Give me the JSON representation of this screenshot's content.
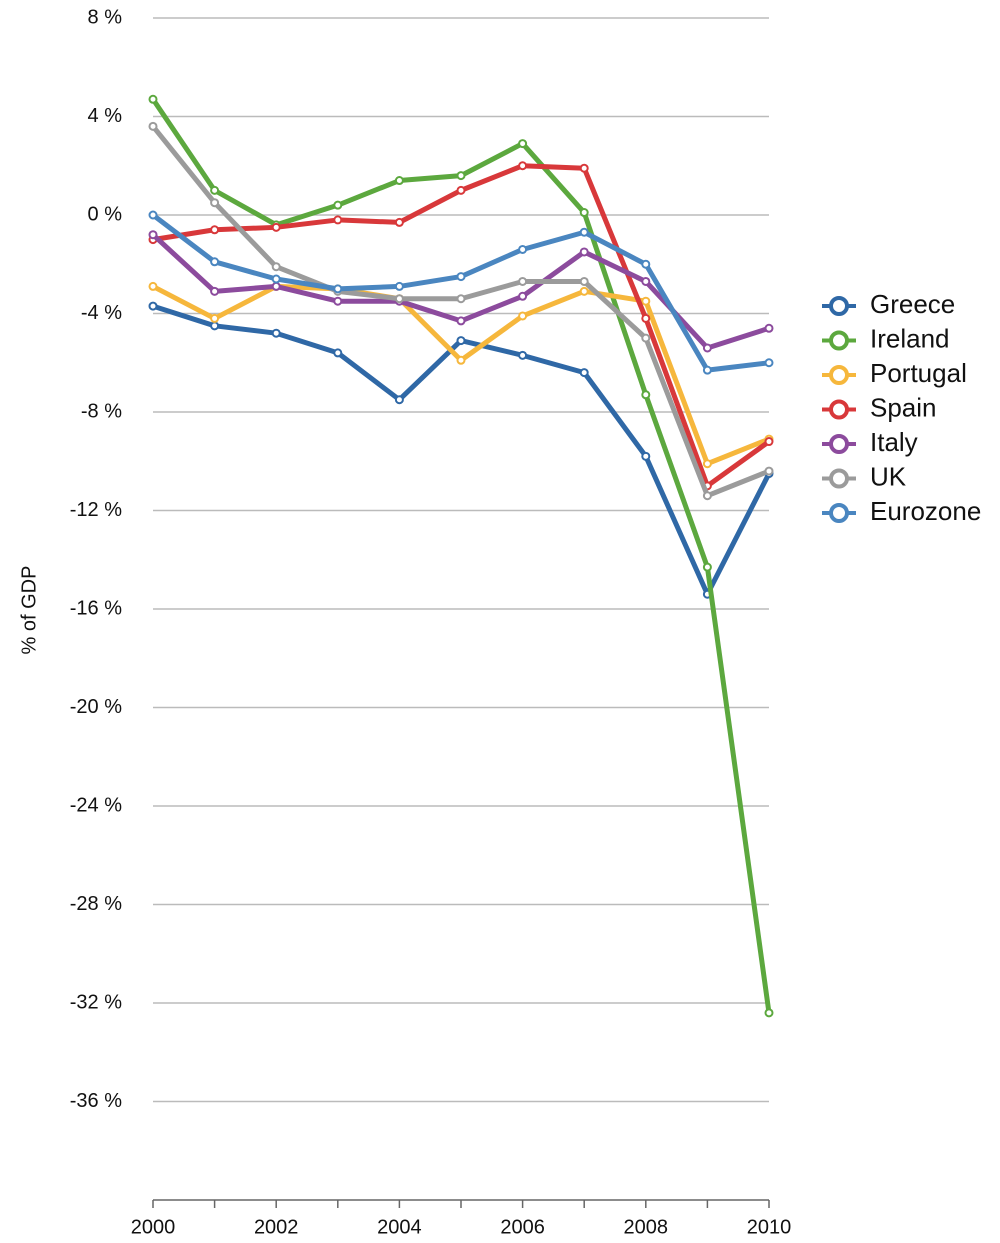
{
  "chart_data": {
    "type": "line",
    "y_label": "% of GDP",
    "x": [
      2000,
      2001,
      2002,
      2003,
      2004,
      2005,
      2006,
      2007,
      2008,
      2009,
      2010
    ],
    "xlim": [
      2000,
      2010
    ],
    "xticks": [
      2000,
      2002,
      2004,
      2006,
      2008,
      2010
    ],
    "ylim": [
      -40,
      8
    ],
    "yticks": [
      {
        "value": 8,
        "label": "8 %"
      },
      {
        "value": 4,
        "label": "4 %"
      },
      {
        "value": 0,
        "label": "0 %"
      },
      {
        "value": -4,
        "label": "-4 %"
      },
      {
        "value": -8,
        "label": "-8 %"
      },
      {
        "value": -12,
        "label": "-12 %"
      },
      {
        "value": -16,
        "label": "-16 %"
      },
      {
        "value": -20,
        "label": "-20 %"
      },
      {
        "value": -24,
        "label": "-24 %"
      },
      {
        "value": -28,
        "label": "-28 %"
      },
      {
        "value": -32,
        "label": "-32 %"
      },
      {
        "value": -36,
        "label": "-36 %"
      }
    ],
    "grid": true,
    "legend": "right",
    "series": [
      {
        "name": "Greece",
        "color": "#2f68a6",
        "values": [
          -3.7,
          -4.5,
          -4.8,
          -5.6,
          -7.5,
          -5.1,
          -5.7,
          -6.4,
          -9.8,
          -15.4,
          -10.5
        ]
      },
      {
        "name": "Ireland",
        "color": "#5ca83e",
        "values": [
          4.7,
          1.0,
          -0.4,
          0.4,
          1.4,
          1.6,
          2.9,
          0.1,
          -7.3,
          -14.3,
          -32.4
        ]
      },
      {
        "name": "Portugal",
        "color": "#f6b73c",
        "values": [
          -2.9,
          -4.2,
          -2.9,
          -3.0,
          -3.4,
          -5.9,
          -4.1,
          -3.1,
          -3.5,
          -10.1,
          -9.1
        ]
      },
      {
        "name": "Spain",
        "color": "#d8383a",
        "values": [
          -1.0,
          -0.6,
          -0.5,
          -0.2,
          -0.3,
          1.0,
          2.0,
          1.9,
          -4.2,
          -11.0,
          -9.2
        ]
      },
      {
        "name": "Italy",
        "color": "#8c4b9d",
        "values": [
          -0.8,
          -3.1,
          -2.9,
          -3.5,
          -3.5,
          -4.3,
          -3.3,
          -1.5,
          -2.7,
          -5.4,
          -4.6
        ]
      },
      {
        "name": "UK",
        "color": "#9b9b9b",
        "values": [
          3.6,
          0.5,
          -2.1,
          -3.1,
          -3.4,
          -3.4,
          -2.7,
          -2.7,
          -5.0,
          -11.4,
          -10.4
        ]
      },
      {
        "name": "Eurozone",
        "color": "#4a86c0",
        "values": [
          0.0,
          -1.9,
          -2.6,
          -3.0,
          -2.9,
          -2.5,
          -1.4,
          -0.7,
          -2.0,
          -6.3,
          -6.0
        ]
      }
    ]
  }
}
